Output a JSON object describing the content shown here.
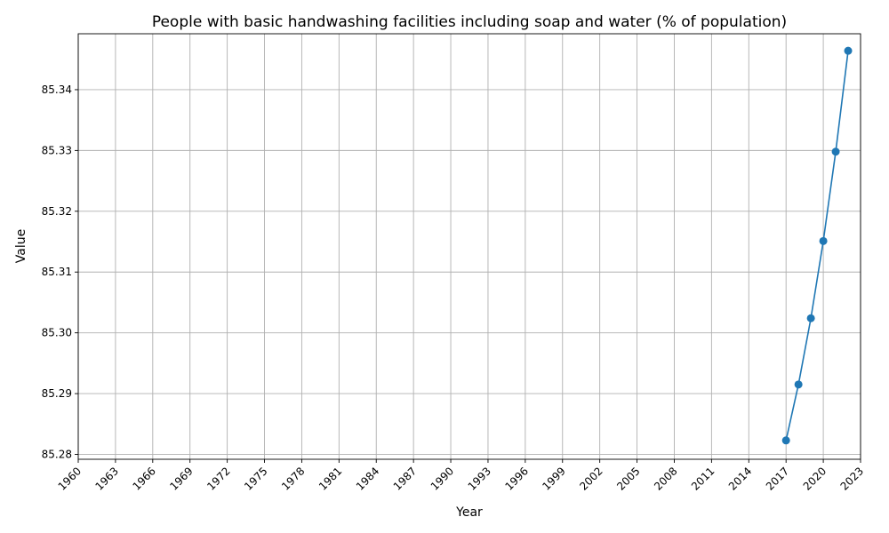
{
  "chart_data": {
    "type": "line",
    "title": "People with basic handwashing facilities including soap and water (% of population)",
    "xlabel": "Year",
    "ylabel": "Value",
    "xlim": [
      1960,
      2023
    ],
    "ylim": [
      85.2792,
      85.3492
    ],
    "x_ticks": [
      1960,
      1963,
      1966,
      1969,
      1972,
      1975,
      1978,
      1981,
      1984,
      1987,
      1990,
      1993,
      1996,
      1999,
      2002,
      2005,
      2008,
      2011,
      2014,
      2017,
      2020,
      2023
    ],
    "y_ticks": [
      85.28,
      85.29,
      85.3,
      85.31,
      85.32,
      85.33,
      85.34
    ],
    "y_tick_labels": [
      "85.28",
      "85.29",
      "85.30",
      "85.31",
      "85.32",
      "85.33",
      "85.34"
    ],
    "grid": true,
    "series": [
      {
        "color": "#1f77b4",
        "marker": "circle",
        "x": [
          2017,
          2018,
          2019,
          2020,
          2021,
          2022
        ],
        "values": [
          85.2823,
          85.2915,
          85.3024,
          85.3151,
          85.3298,
          85.3464
        ]
      }
    ]
  }
}
